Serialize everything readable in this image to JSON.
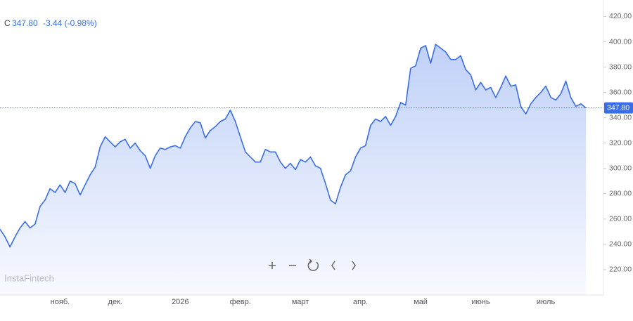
{
  "chart_data": {
    "type": "area",
    "header": {
      "symbol": "C",
      "change": "-3.44 (-0.98%)"
    },
    "watermark": "InstaFintech",
    "last_price": {
      "value": 347.8,
      "label": "347.80"
    },
    "color": "#3a6ee8",
    "categories": [
      null,
      null,
      null,
      null,
      null,
      null,
      null,
      null,
      null,
      null,
      null,
      null,
      "нояб.",
      null,
      null,
      null,
      null,
      null,
      null,
      null,
      null,
      null,
      null,
      "дек.",
      null,
      null,
      null,
      null,
      null,
      null,
      null,
      null,
      null,
      null,
      null,
      null,
      "2026",
      null,
      null,
      null,
      null,
      null,
      null,
      null,
      null,
      null,
      null,
      null,
      "февр.",
      null,
      null,
      null,
      null,
      null,
      null,
      null,
      null,
      null,
      null,
      null,
      "март",
      null,
      null,
      null,
      null,
      null,
      null,
      null,
      null,
      null,
      null,
      null,
      "апр.",
      null,
      null,
      null,
      null,
      null,
      null,
      null,
      null,
      null,
      null,
      null,
      "май",
      null,
      null,
      null,
      null,
      null,
      null,
      null,
      null,
      null,
      null,
      null,
      "июнь",
      null,
      null,
      null,
      null,
      null,
      null,
      null,
      null,
      null,
      null,
      null,
      null,
      "июль",
      null,
      null,
      null,
      null,
      null,
      null,
      null,
      null
    ],
    "values": [
      252,
      246,
      238,
      246,
      253,
      258,
      253,
      256,
      270,
      275,
      284,
      281,
      287,
      281,
      290,
      288,
      279,
      287,
      295,
      301,
      317,
      325,
      321,
      317,
      321,
      323,
      316,
      320,
      314,
      310,
      300,
      310,
      316,
      315,
      317,
      318,
      316,
      325,
      332,
      337,
      336,
      324,
      330,
      333,
      337,
      339,
      346,
      337,
      325,
      313,
      309,
      305,
      305,
      315,
      313,
      313,
      305,
      300,
      304,
      299,
      307,
      305,
      309,
      302,
      300,
      288,
      275,
      272,
      285,
      295,
      298,
      309,
      316,
      318,
      334,
      339,
      337,
      341,
      334,
      341,
      352,
      350,
      379,
      381,
      395,
      397,
      383,
      398,
      395,
      392,
      386,
      386,
      389,
      378,
      374,
      362,
      368,
      362,
      364,
      356,
      364,
      373,
      365,
      366,
      349,
      343,
      351,
      356,
      360,
      365,
      356,
      354,
      359,
      369,
      356,
      349,
      351,
      347.8
    ],
    "ylim": [
      200,
      433
    ],
    "yticks": [
      {
        "value": 220,
        "label": "220.00"
      },
      {
        "value": 240,
        "label": "240.00"
      },
      {
        "value": 260,
        "label": "260.00"
      },
      {
        "value": 280,
        "label": "280.00"
      },
      {
        "value": 300,
        "label": "300.00"
      },
      {
        "value": 320,
        "label": "320.00"
      },
      {
        "value": 340,
        "label": "340.00"
      },
      {
        "value": 360,
        "label": "360.00"
      },
      {
        "value": 380,
        "label": "380.00"
      },
      {
        "value": 400,
        "label": "400.00"
      },
      {
        "value": 420,
        "label": "420.00"
      }
    ],
    "grid": false
  }
}
